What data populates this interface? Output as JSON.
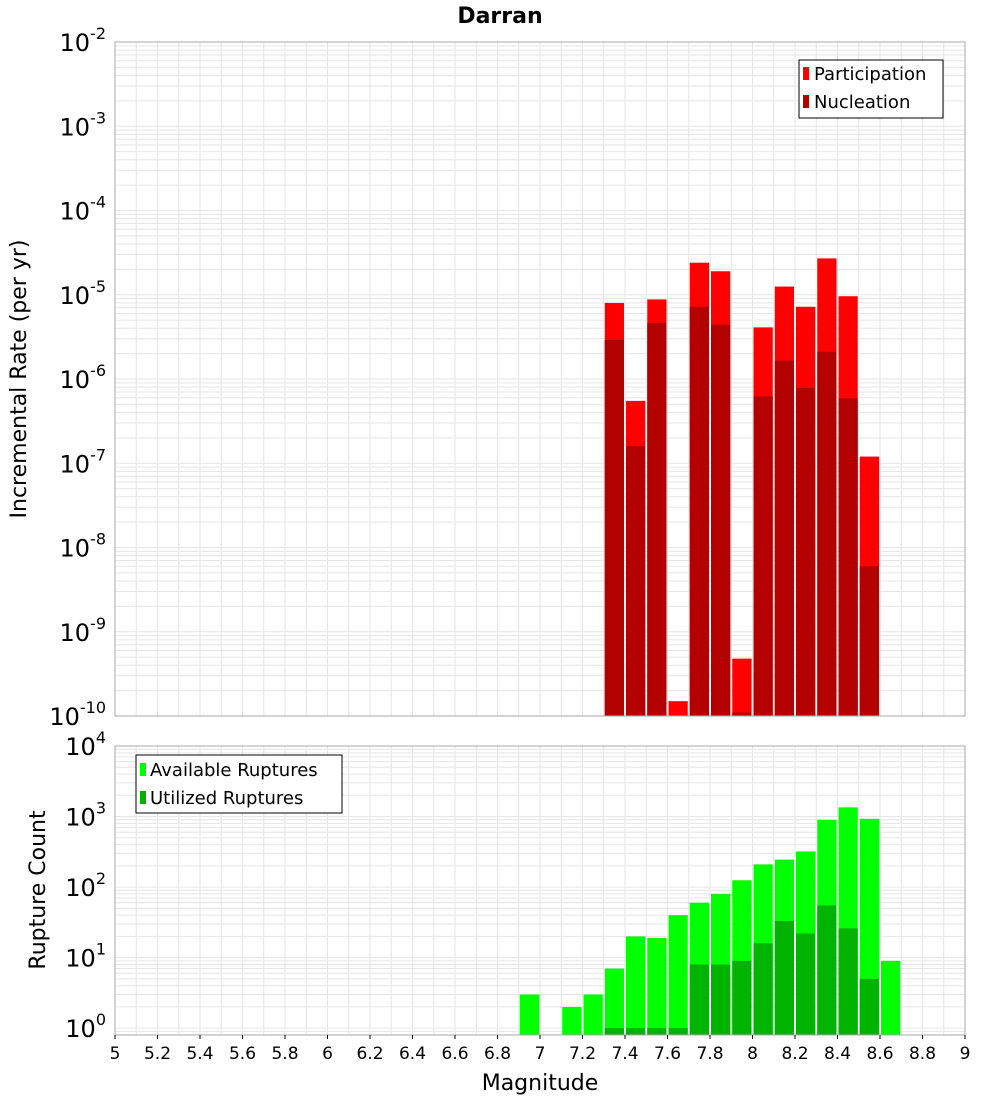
{
  "colors": {
    "participation": "#ff0000",
    "nucleation": "#b30000",
    "available": "#00ff00",
    "utilized": "#00b300",
    "grid": "#e6e6e6",
    "frame": "#aaaaaa"
  },
  "chart_data": [
    {
      "type": "bar",
      "title": "Darran",
      "xlabel": "",
      "ylabel": "Incremental Rate (per yr)",
      "yscale": "log",
      "ylim": [
        1e-10,
        0.01
      ],
      "xlim": [
        5,
        9
      ],
      "grid": true,
      "legend_position": "top-right",
      "y_tick_exponents": [
        "-10",
        "-9",
        "-8",
        "-7",
        "-6",
        "-5",
        "-4",
        "-3",
        "-2"
      ],
      "x": [
        7.35,
        7.45,
        7.55,
        7.65,
        7.75,
        7.85,
        7.95,
        8.05,
        8.15,
        8.25,
        8.35,
        8.45,
        8.55
      ],
      "series": [
        {
          "name": "Participation",
          "values": [
            8e-06,
            5.5e-07,
            8.8e-06,
            1.5e-10,
            2.4e-05,
            1.9e-05,
            4.8e-10,
            4.1e-06,
            1.25e-05,
            7.2e-06,
            2.7e-05,
            9.6e-06,
            1.2e-07
          ]
        },
        {
          "name": "Nucleation",
          "values": [
            2.9e-06,
            1.6e-07,
            4.6e-06,
            1e-10,
            7.2e-06,
            4.4e-06,
            1.1e-10,
            6.2e-07,
            1.65e-06,
            7.8e-07,
            2.1e-06,
            5.9e-07,
            6e-09
          ]
        }
      ]
    },
    {
      "type": "bar",
      "title": "",
      "xlabel": "Magnitude",
      "ylabel": "Rupture Count",
      "yscale": "log",
      "ylim": [
        0.8,
        10000
      ],
      "xlim": [
        5,
        9
      ],
      "grid": true,
      "legend_position": "top-left",
      "y_tick_exponents": [
        "0",
        "1",
        "2",
        "3",
        "4"
      ],
      "x_tick_labels": [
        "5",
        "5.2",
        "5.4",
        "5.6",
        "5.8",
        "6",
        "6.2",
        "6.4",
        "6.6",
        "6.8",
        "7",
        "7.2",
        "7.4",
        "7.6",
        "7.8",
        "8",
        "8.2",
        "8.4",
        "8.6",
        "8.8",
        "9"
      ],
      "x": [
        6.95,
        7.15,
        7.25,
        7.35,
        7.45,
        7.55,
        7.65,
        7.75,
        7.85,
        7.95,
        8.05,
        8.15,
        8.25,
        8.35,
        8.45,
        8.55,
        8.65
      ],
      "series": [
        {
          "name": "Available Ruptures",
          "values": [
            3,
            2,
            3,
            7,
            20,
            19,
            40,
            60,
            80,
            125,
            210,
            245,
            320,
            900,
            1350,
            930,
            9
          ]
        },
        {
          "name": "Utilized Ruptures",
          "values": [
            null,
            null,
            null,
            1,
            1,
            1,
            1,
            8,
            8,
            9,
            16,
            33,
            22,
            55,
            26,
            5,
            null
          ]
        }
      ]
    }
  ]
}
